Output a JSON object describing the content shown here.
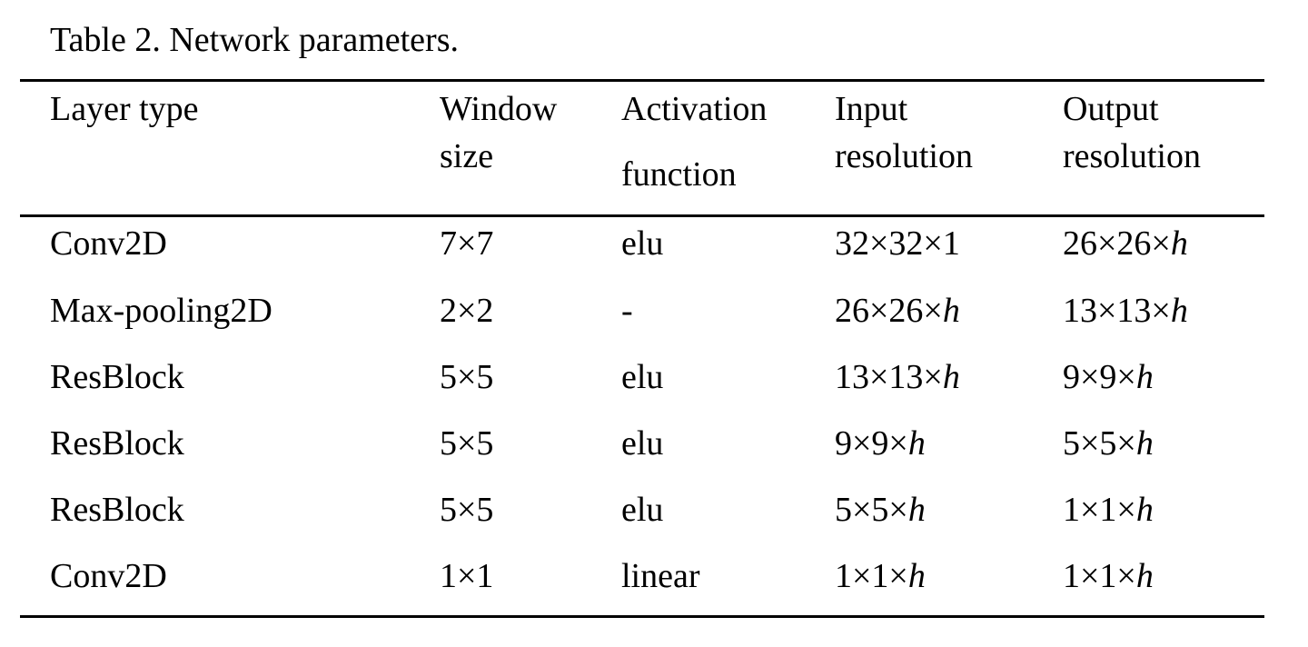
{
  "caption": "Table 2. Network parameters.",
  "headers": [
    {
      "line1": "Layer type",
      "line2": ""
    },
    {
      "line1": "Window",
      "line2": "size"
    },
    {
      "line1": "Activation",
      "line2": "function"
    },
    {
      "line1": "Input",
      "line2": "resolution"
    },
    {
      "line1": "Output",
      "line2": "resolution"
    }
  ],
  "rows": [
    {
      "layer": "Conv2D",
      "window": "7×7",
      "activation": "elu",
      "input_base": "32×32×1",
      "input_var": "",
      "output_base": "26×26×",
      "output_var": "h"
    },
    {
      "layer": "Max-pooling2D",
      "window": "2×2",
      "activation": "-",
      "input_base": "26×26×",
      "input_var": "h",
      "output_base": "13×13×",
      "output_var": "h"
    },
    {
      "layer": "ResBlock",
      "window": "5×5",
      "activation": "elu",
      "input_base": "13×13×",
      "input_var": "h",
      "output_base": "9×9×",
      "output_var": "h"
    },
    {
      "layer": "ResBlock",
      "window": "5×5",
      "activation": "elu",
      "input_base": "9×9×",
      "input_var": "h",
      "output_base": "5×5×",
      "output_var": "h"
    },
    {
      "layer": "ResBlock",
      "window": "5×5",
      "activation": "elu",
      "input_base": "5×5×",
      "input_var": "h",
      "output_base": "1×1×",
      "output_var": "h"
    },
    {
      "layer": "Conv2D",
      "window": "1×1",
      "activation": "linear",
      "input_base": "1×1×",
      "input_var": "h",
      "output_base": "1×1×",
      "output_var": "h"
    }
  ]
}
